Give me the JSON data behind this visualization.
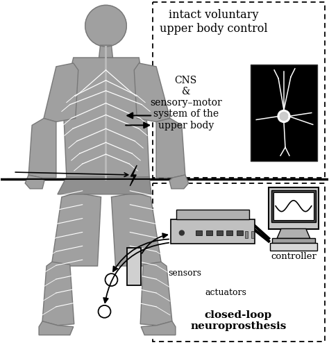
{
  "bg_color": "#ffffff",
  "title_upper": "intact voluntary\nupper body control",
  "cns_text": "CNS\n&\nsensory–motor\nsystem of the\nupper body",
  "controller_text": "controller",
  "sensors_text": "sensors",
  "actuators_text": "actuators",
  "closed_loop_text": "closed-loop\nneuroprosthesis",
  "fig_width": 4.74,
  "fig_height": 4.97,
  "dpi": 100
}
